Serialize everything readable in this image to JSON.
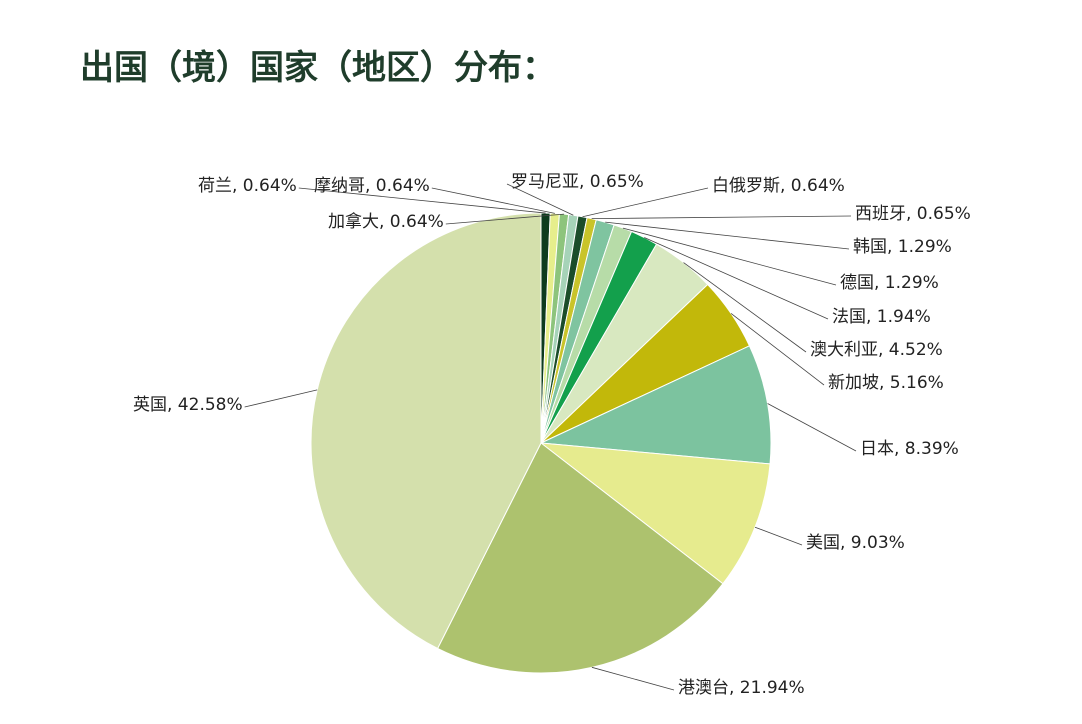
{
  "chart_data": {
    "type": "pie",
    "title": "出国（境）国家（地区）分布：",
    "labels": [
      "荷兰, 0.64%",
      "摩纳哥, 0.64%",
      "加拿大, 0.64%",
      "罗马尼亚, 0.65%",
      "白俄罗斯, 0.64%",
      "西班牙, 0.65%",
      "韩国, 1.29%",
      "德国, 1.29%",
      "法国, 1.94%",
      "澳大利亚, 4.52%",
      "新加坡, 5.16%",
      "日本, 8.39%",
      "美国, 9.03%",
      "港澳台, 21.94%",
      "英国, 42.58%"
    ],
    "values": [
      0.64,
      0.64,
      0.64,
      0.65,
      0.64,
      0.65,
      1.29,
      1.29,
      1.94,
      4.52,
      5.16,
      8.39,
      9.03,
      21.94,
      42.58
    ],
    "colors": [
      "#0d3b1e",
      "#e6ee8c",
      "#8dc47c",
      "#a6d3b8",
      "#1b4d2a",
      "#c9c42a",
      "#7fc4a0",
      "#b7dca8",
      "#13a04c",
      "#d8e8c0",
      "#c2b80a",
      "#7cc39f",
      "#e6eb8e",
      "#adc26e",
      "#d4e0ac"
    ]
  }
}
